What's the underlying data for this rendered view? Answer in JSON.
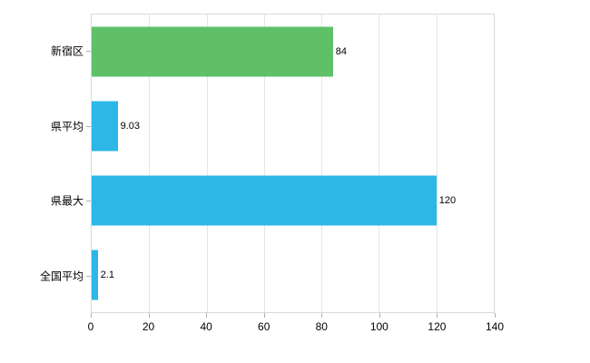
{
  "chart_data": {
    "type": "bar",
    "orientation": "horizontal",
    "title": "",
    "categories": [
      "新宿区",
      "県平均",
      "県最大",
      "全国平均"
    ],
    "values": [
      84,
      9.03,
      120,
      2.1
    ],
    "value_labels": [
      "84",
      "9.03",
      "120",
      "2.1"
    ],
    "bar_colors": [
      "#5fc068",
      "#2cb7e8",
      "#2cb7e8",
      "#2cb7e8"
    ],
    "xlim": [
      0,
      140
    ],
    "x_ticks": [
      0,
      20,
      40,
      60,
      80,
      100,
      120,
      140
    ],
    "grid": "vertical",
    "legend": "none",
    "xlabel": "",
    "ylabel": "",
    "colors": {
      "grid": "#e5e5e5",
      "axis_border": "#d9d9d9",
      "tick": "#b0b0b0",
      "text": "#000000",
      "background": "#ffffff"
    }
  }
}
